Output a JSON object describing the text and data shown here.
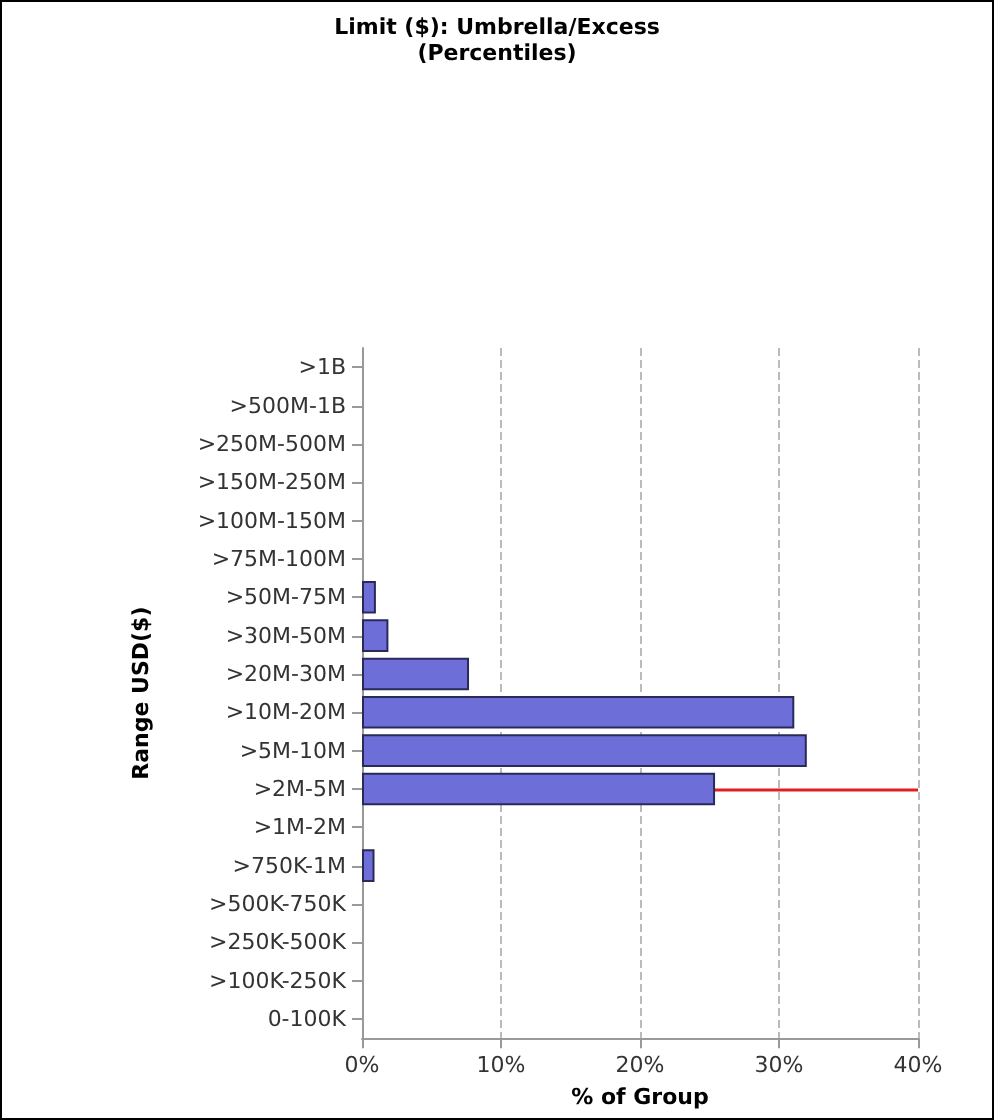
{
  "chart_data": {
    "type": "bar",
    "orientation": "horizontal",
    "title": "Limit ($): Umbrella/Excess",
    "subtitle": "(Percentiles)",
    "xlabel": "% of Group",
    "ylabel": "Range USD($)",
    "categories": [
      ">1B",
      ">500M-1B",
      ">250M-500M",
      ">150M-250M",
      ">100M-150M",
      ">75M-100M",
      ">50M-75M",
      ">30M-50M",
      ">20M-30M",
      ">10M-20M",
      ">5M-10M",
      ">2M-5M",
      ">1M-2M",
      ">750K-1M",
      ">500K-750K",
      ">250K-500K",
      ">100K-250K",
      "0-100K"
    ],
    "values": [
      0,
      0,
      0,
      0,
      0,
      0,
      1.0,
      1.9,
      7.7,
      31.1,
      32.0,
      25.4,
      0,
      0.9,
      0,
      0,
      0,
      0
    ],
    "color": "#6e6ed8",
    "xlim": [
      0,
      40
    ],
    "xticks": [
      {
        "value": 0,
        "label": "0%"
      },
      {
        "value": 10,
        "label": "10%"
      },
      {
        "value": 20,
        "label": "20%"
      },
      {
        "value": 30,
        "label": "30%"
      },
      {
        "value": 40,
        "label": "40%"
      }
    ],
    "grid": "x",
    "ref_lines": [
      {
        "axis": "y",
        "value": ">2M-5M",
        "color": "#e02020"
      }
    ]
  }
}
